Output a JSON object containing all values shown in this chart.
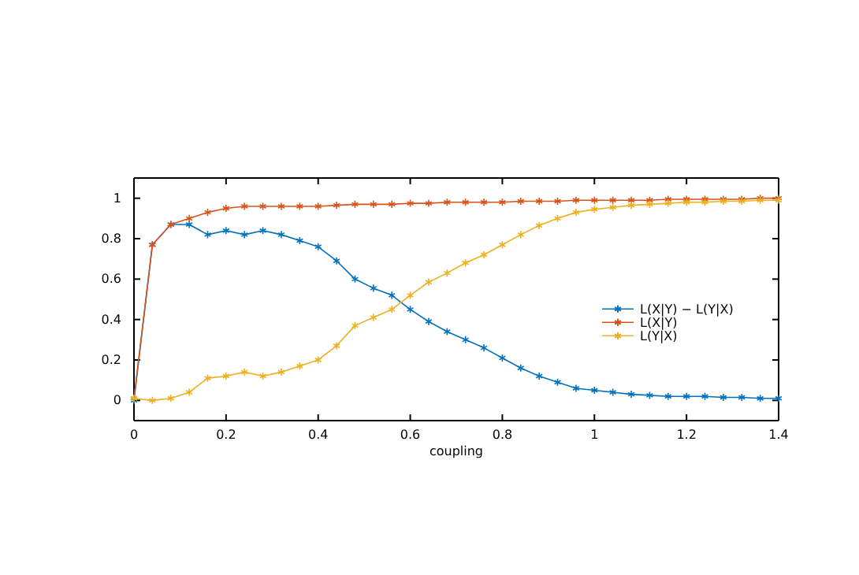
{
  "chart_data": {
    "type": "line",
    "xlabel": "coupling",
    "x": [
      0,
      0.04,
      0.08,
      0.12,
      0.16,
      0.2,
      0.24,
      0.28,
      0.32,
      0.36,
      0.4,
      0.44,
      0.48,
      0.52,
      0.56,
      0.6,
      0.64,
      0.68,
      0.72,
      0.76,
      0.8,
      0.84,
      0.88,
      0.92,
      0.96,
      1,
      1.04,
      1.08,
      1.12,
      1.16,
      1.2,
      1.24,
      1.28,
      1.32,
      1.36,
      1.4
    ],
    "series": [
      {
        "name": "L(X|Y) − L(Y|X)",
        "color": "#0072bd",
        "values": [
          0,
          0.77,
          0.87,
          0.87,
          0.82,
          0.84,
          0.82,
          0.84,
          0.82,
          0.79,
          0.76,
          0.69,
          0.6,
          0.555,
          0.52,
          0.45,
          0.39,
          0.34,
          0.3,
          0.26,
          0.21,
          0.16,
          0.12,
          0.09,
          0.06,
          0.05,
          0.04,
          0.03,
          0.025,
          0.02,
          0.02,
          0.02,
          0.015,
          0.015,
          0.01,
          0.01
        ]
      },
      {
        "name": "L(X|Y)",
        "color": "#d95319",
        "values": [
          0.01,
          0.77,
          0.87,
          0.9,
          0.93,
          0.95,
          0.96,
          0.96,
          0.96,
          0.96,
          0.96,
          0.965,
          0.97,
          0.97,
          0.97,
          0.975,
          0.975,
          0.98,
          0.98,
          0.98,
          0.98,
          0.985,
          0.985,
          0.985,
          0.99,
          0.99,
          0.99,
          0.99,
          0.99,
          0.995,
          0.995,
          0.995,
          0.995,
          0.995,
          1,
          1
        ]
      },
      {
        "name": "L(Y|X)",
        "color": "#edb120",
        "values": [
          0.01,
          0,
          0.01,
          0.04,
          0.11,
          0.12,
          0.14,
          0.12,
          0.14,
          0.17,
          0.2,
          0.27,
          0.37,
          0.41,
          0.45,
          0.52,
          0.585,
          0.63,
          0.68,
          0.72,
          0.77,
          0.82,
          0.865,
          0.9,
          0.93,
          0.945,
          0.955,
          0.965,
          0.97,
          0.975,
          0.98,
          0.98,
          0.985,
          0.985,
          0.99,
          0.99
        ]
      }
    ],
    "xlim": [
      0,
      1.4
    ],
    "xticks": [
      0,
      0.2,
      0.4,
      0.6,
      0.8,
      1,
      1.2,
      1.4
    ],
    "ylim": [
      -0.1,
      1.1
    ],
    "yticks": [
      0,
      0.2,
      0.4,
      0.6,
      0.8,
      1
    ],
    "grid": false,
    "legend": "right",
    "marker": "cross",
    "line_style": "solid"
  }
}
